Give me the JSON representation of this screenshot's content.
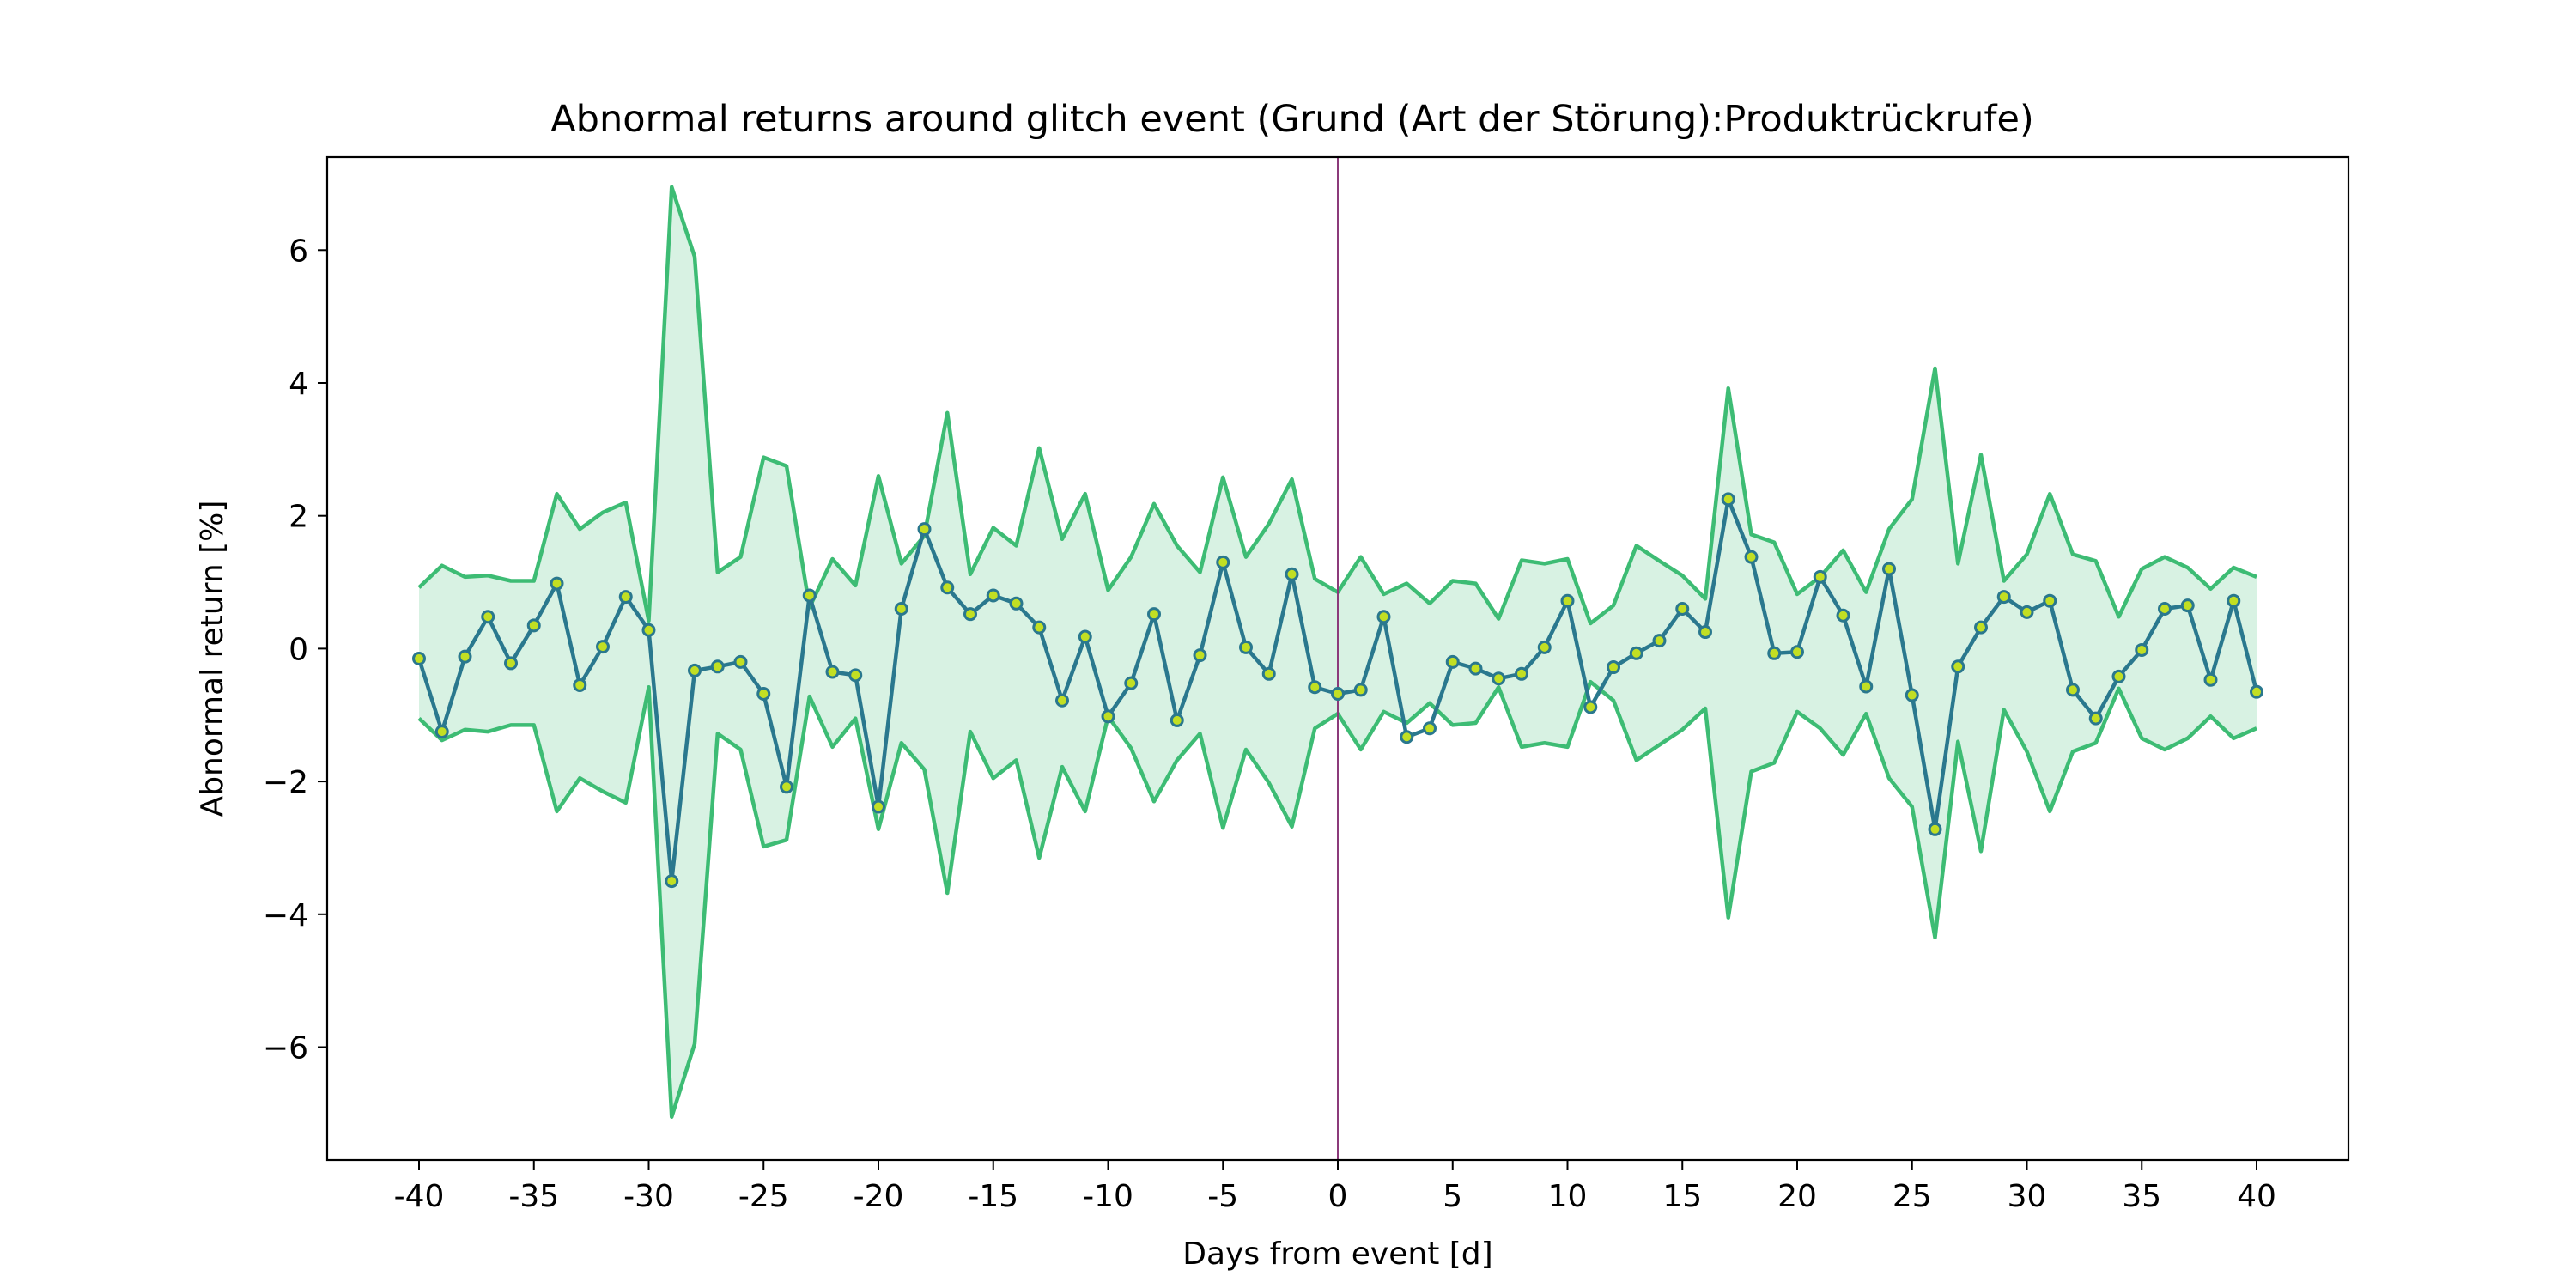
{
  "chart_data": {
    "type": "line",
    "title": "Abnormal returns around glitch event (Grund (Art der Störung):Produktrückrufe)",
    "xlabel": "Days from event [d]",
    "ylabel": "Abnormal return [%]",
    "xlim": [
      -44,
      44
    ],
    "ylim": [
      -7.7,
      7.4
    ],
    "xticks": [
      -40,
      -35,
      -30,
      -25,
      -20,
      -15,
      -10,
      -5,
      0,
      5,
      10,
      15,
      20,
      25,
      30,
      35,
      40
    ],
    "yticks": [
      -6,
      -4,
      -2,
      0,
      2,
      4,
      6
    ],
    "ytick_labels": [
      "−6",
      "−4",
      "−2",
      "0",
      "2",
      "4",
      "6"
    ],
    "grid": false,
    "event_line_x": 0,
    "x": [
      -40,
      -39,
      -38,
      -37,
      -36,
      -35,
      -34,
      -33,
      -32,
      -31,
      -30,
      -29,
      -28,
      -27,
      -26,
      -25,
      -24,
      -23,
      -22,
      -21,
      -20,
      -19,
      -18,
      -17,
      -16,
      -15,
      -14,
      -13,
      -12,
      -11,
      -10,
      -9,
      -8,
      -7,
      -6,
      -5,
      -4,
      -3,
      -2,
      -1,
      0,
      1,
      2,
      3,
      4,
      5,
      6,
      7,
      8,
      9,
      10,
      11,
      12,
      13,
      14,
      15,
      16,
      17,
      18,
      19,
      20,
      21,
      22,
      23,
      24,
      25,
      26,
      27,
      28,
      29,
      30,
      31,
      32,
      33,
      34,
      35,
      36,
      37,
      38,
      39,
      40
    ],
    "series": [
      {
        "role": "mean",
        "values": [
          -0.15,
          -1.25,
          -0.12,
          0.48,
          -0.22,
          0.35,
          0.98,
          -0.55,
          0.03,
          0.78,
          0.28,
          -3.5,
          -0.33,
          -0.27,
          -0.2,
          -0.68,
          -2.08,
          0.8,
          -0.35,
          -0.4,
          -2.38,
          0.6,
          1.8,
          0.92,
          0.52,
          0.8,
          0.68,
          0.32,
          -0.78,
          0.18,
          -1.02,
          -0.52,
          0.52,
          -1.08,
          -0.1,
          1.3,
          0.02,
          -0.38,
          1.12,
          -0.58,
          -0.68,
          -0.62,
          0.48,
          -1.33,
          -1.2,
          -0.2,
          -0.3,
          -0.45,
          -0.38,
          0.02,
          0.72,
          -0.88,
          -0.28,
          -0.07,
          0.12,
          0.6,
          0.25,
          2.25,
          1.38,
          -0.07,
          -0.05,
          1.08,
          0.5,
          -0.57,
          1.2,
          -0.7,
          -2.72,
          -0.27,
          0.32,
          0.78,
          0.55,
          0.72,
          -0.62,
          -1.05,
          -0.42,
          -0.02,
          0.6,
          0.65,
          -0.47,
          0.72,
          -0.65
        ]
      },
      {
        "role": "upper",
        "values": [
          0.92,
          1.25,
          1.08,
          1.1,
          1.02,
          1.02,
          2.33,
          1.8,
          2.05,
          2.2,
          0.42,
          6.95,
          5.9,
          1.15,
          1.38,
          2.88,
          2.75,
          0.62,
          1.35,
          0.95,
          2.6,
          1.28,
          1.7,
          3.55,
          1.12,
          1.82,
          1.55,
          3.02,
          1.65,
          2.33,
          0.88,
          1.38,
          2.18,
          1.55,
          1.15,
          2.58,
          1.38,
          1.88,
          2.55,
          1.05,
          0.85,
          1.38,
          0.82,
          0.98,
          0.68,
          1.02,
          0.98,
          0.45,
          1.33,
          1.28,
          1.35,
          0.38,
          0.65,
          1.55,
          1.32,
          1.1,
          0.75,
          3.92,
          1.72,
          1.6,
          0.82,
          1.08,
          1.48,
          0.85,
          1.8,
          2.25,
          4.22,
          1.28,
          2.92,
          1.02,
          1.42,
          2.33,
          1.42,
          1.32,
          0.48,
          1.2,
          1.38,
          1.22,
          0.9,
          1.22,
          1.08
        ]
      },
      {
        "role": "lower",
        "values": [
          -1.05,
          -1.38,
          -1.22,
          -1.25,
          -1.15,
          -1.15,
          -2.45,
          -1.95,
          -2.15,
          -2.32,
          -0.58,
          -7.05,
          -5.95,
          -1.28,
          -1.52,
          -2.98,
          -2.88,
          -0.72,
          -1.48,
          -1.05,
          -2.72,
          -1.42,
          -1.82,
          -3.68,
          -1.25,
          -1.95,
          -1.68,
          -3.15,
          -1.78,
          -2.45,
          -1.02,
          -1.5,
          -2.3,
          -1.68,
          -1.28,
          -2.7,
          -1.52,
          -2.02,
          -2.68,
          -1.2,
          -0.98,
          -1.52,
          -0.95,
          -1.12,
          -0.82,
          -1.15,
          -1.12,
          -0.58,
          -1.48,
          -1.42,
          -1.48,
          -0.5,
          -0.78,
          -1.68,
          -1.45,
          -1.22,
          -0.9,
          -4.05,
          -1.85,
          -1.72,
          -0.95,
          -1.2,
          -1.6,
          -0.98,
          -1.95,
          -2.38,
          -4.35,
          -1.4,
          -3.05,
          -0.92,
          -1.55,
          -2.45,
          -1.55,
          -1.42,
          -0.6,
          -1.35,
          -1.52,
          -1.35,
          -1.02,
          -1.35,
          -1.2
        ]
      }
    ],
    "colors": {
      "mean_line": "#2a788e",
      "marker_face": "#c2df23",
      "band_line": "#3dbc74",
      "band_fill": "#3dbc74",
      "event_line": "#8b3a7a"
    }
  }
}
